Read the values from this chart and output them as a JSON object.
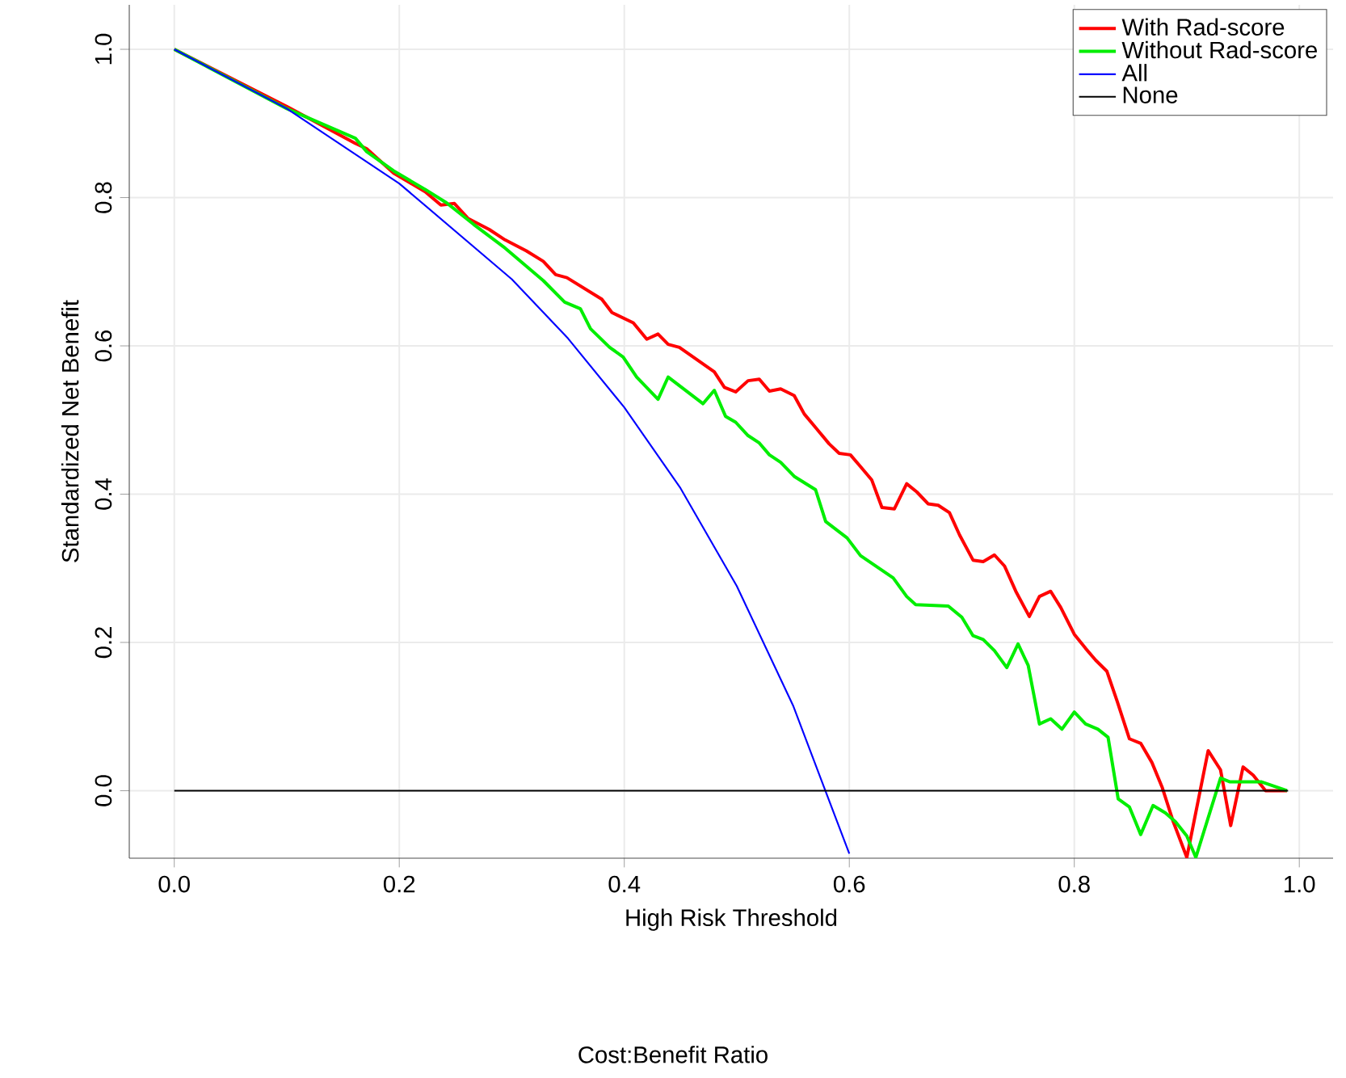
{
  "chart_data": {
    "type": "line",
    "xlabel": "High Risk Threshold",
    "ylabel": "Standardized Net Benefit",
    "annotations": [
      "Cost:Benefit Ratio"
    ],
    "xlim": [
      -0.04,
      1.03
    ],
    "ylim": [
      -0.091,
      1.06
    ],
    "xticks": [
      {
        "value": 0,
        "label": "0.0"
      },
      {
        "value": 0.2,
        "label": "0.2"
      },
      {
        "value": 0.4,
        "label": "0.4"
      },
      {
        "value": 0.6,
        "label": "0.6"
      },
      {
        "value": 0.8,
        "label": "0.8"
      },
      {
        "value": 1,
        "label": "1.0"
      }
    ],
    "yticks": [
      {
        "value": 0,
        "label": "0.0"
      },
      {
        "value": 0.2,
        "label": "0.2"
      },
      {
        "value": 0.4,
        "label": "0.4"
      },
      {
        "value": 0.6,
        "label": "0.6"
      },
      {
        "value": 0.8,
        "label": "0.8"
      },
      {
        "value": 1,
        "label": "1.0"
      }
    ],
    "grid": true,
    "legend": "top right",
    "series": [
      {
        "name": "With Rad-score",
        "color": "#ff0000",
        "x": [
          0,
          0.1,
          0.161,
          0.171,
          0.195,
          0.223,
          0.237,
          0.249,
          0.261,
          0.28,
          0.294,
          0.313,
          0.328,
          0.339,
          0.349,
          0.38,
          0.389,
          0.408,
          0.42,
          0.43,
          0.439,
          0.449,
          0.48,
          0.489,
          0.499,
          0.51,
          0.52,
          0.529,
          0.539,
          0.551,
          0.56,
          0.57,
          0.582,
          0.591,
          0.601,
          0.61,
          0.62,
          0.629,
          0.64,
          0.651,
          0.66,
          0.67,
          0.679,
          0.689,
          0.698,
          0.71,
          0.719,
          0.729,
          0.738,
          0.748,
          0.76,
          0.769,
          0.779,
          0.788,
          0.8,
          0.81,
          0.819,
          0.829,
          0.838,
          0.849,
          0.859,
          0.869,
          0.878,
          0.888,
          0.9,
          0.919,
          0.93,
          0.939,
          0.95,
          0.959,
          0.97,
          0.989
        ],
        "values": [
          1,
          0.923,
          0.873,
          0.866,
          0.833,
          0.808,
          0.79,
          0.792,
          0.772,
          0.757,
          0.743,
          0.728,
          0.714,
          0.696,
          0.692,
          0.663,
          0.645,
          0.631,
          0.609,
          0.616,
          0.602,
          0.598,
          0.565,
          0.544,
          0.538,
          0.553,
          0.555,
          0.539,
          0.542,
          0.533,
          0.508,
          0.49,
          0.468,
          0.455,
          0.453,
          0.437,
          0.419,
          0.382,
          0.38,
          0.414,
          0.403,
          0.387,
          0.385,
          0.375,
          0.345,
          0.311,
          0.309,
          0.318,
          0.303,
          0.269,
          0.235,
          0.262,
          0.269,
          0.247,
          0.211,
          0.192,
          0.176,
          0.161,
          0.121,
          0.07,
          0.064,
          0.038,
          0.005,
          -0.042,
          -0.09,
          0.054,
          0.028,
          -0.047,
          0.032,
          0.021,
          0,
          0
        ]
      },
      {
        "name": "Without Rad-score",
        "color": "#00ee00",
        "x": [
          0,
          0.1,
          0.161,
          0.171,
          0.195,
          0.223,
          0.242,
          0.266,
          0.294,
          0.328,
          0.347,
          0.361,
          0.37,
          0.387,
          0.399,
          0.411,
          0.43,
          0.439,
          0.47,
          0.48,
          0.49,
          0.499,
          0.51,
          0.52,
          0.529,
          0.539,
          0.551,
          0.57,
          0.579,
          0.598,
          0.61,
          0.639,
          0.651,
          0.659,
          0.688,
          0.7,
          0.71,
          0.719,
          0.729,
          0.74,
          0.75,
          0.759,
          0.769,
          0.779,
          0.789,
          0.8,
          0.81,
          0.821,
          0.83,
          0.839,
          0.849,
          0.859,
          0.87,
          0.881,
          0.89,
          0.9,
          0.908,
          0.93,
          0.938,
          0.966,
          0.989
        ],
        "values": [
          1,
          0.92,
          0.88,
          0.862,
          0.836,
          0.811,
          0.793,
          0.764,
          0.732,
          0.688,
          0.659,
          0.65,
          0.623,
          0.598,
          0.585,
          0.558,
          0.528,
          0.558,
          0.522,
          0.54,
          0.505,
          0.497,
          0.479,
          0.469,
          0.453,
          0.443,
          0.424,
          0.406,
          0.363,
          0.341,
          0.317,
          0.287,
          0.262,
          0.251,
          0.249,
          0.234,
          0.209,
          0.204,
          0.189,
          0.166,
          0.198,
          0.169,
          0.09,
          0.097,
          0.083,
          0.106,
          0.09,
          0.083,
          0.072,
          -0.011,
          -0.022,
          -0.059,
          -0.02,
          -0.03,
          -0.042,
          -0.061,
          -0.09,
          0.017,
          0.012,
          0.012,
          0
        ]
      },
      {
        "name": "All",
        "color": "#0000ff",
        "x": [
          0,
          0.1,
          0.2,
          0.3,
          0.35,
          0.4,
          0.45,
          0.5,
          0.55,
          0.6
        ],
        "values": [
          1,
          0.92,
          0.819,
          0.69,
          0.61,
          0.517,
          0.408,
          0.276,
          0.115,
          -0.085
        ]
      },
      {
        "name": "None",
        "color": "#000000",
        "x": [
          0,
          0.99
        ],
        "values": [
          0,
          0
        ]
      }
    ]
  }
}
